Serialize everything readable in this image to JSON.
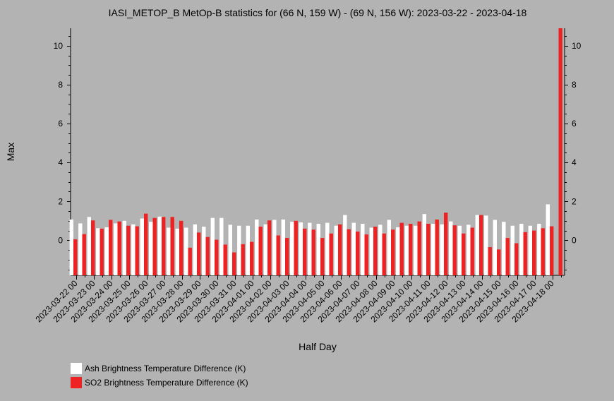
{
  "chart_data": {
    "type": "bar",
    "title": "IASI_METOP_B MetOp-B statistics for (66 N, 159 W) - (69 N, 156 W): 2023-03-22 - 2023-04-18",
    "xlabel": "Half Day",
    "ylabel": "Max",
    "ylim": [
      -1.8,
      10.9
    ],
    "yticks": [
      0,
      2,
      4,
      6,
      8,
      10
    ],
    "grid": false,
    "legend_position": "bottom-left",
    "xtick_labels": [
      "2023-03-22 00",
      "2023-03-23 00",
      "2023-03-24 00",
      "2023-03-25 00",
      "2023-03-26 00",
      "2023-03-27 00",
      "2023-03-28 00",
      "2023-03-29 00",
      "2023-03-30 00",
      "2023-03-31 00",
      "2023-04-01 00",
      "2023-04-02 00",
      "2023-04-03 00",
      "2023-04-04 00",
      "2023-04-05 00",
      "2023-04-06 00",
      "2023-04-07 00",
      "2023-04-08 00",
      "2023-04-09 00",
      "2023-04-10 00",
      "2023-04-11 00",
      "2023-04-12 00",
      "2023-04-13 00",
      "2023-04-14 00",
      "2023-04-15 00",
      "2023-04-16 00",
      "2023-04-17 00",
      "2023-04-18 00"
    ],
    "series": [
      {
        "name": "Ash Brightness Temperature Difference (K)",
        "color": "#ffffff",
        "values": [
          1.07,
          0.87,
          1.2,
          0.62,
          0.67,
          0.87,
          1.0,
          0.82,
          1.12,
          0.95,
          1.22,
          0.65,
          0.6,
          0.65,
          0.82,
          0.7,
          1.15,
          1.15,
          0.8,
          0.75,
          0.75,
          1.07,
          0.82,
          1.05,
          1.07,
          0.95,
          0.92,
          0.9,
          0.85,
          0.9,
          0.75,
          1.3,
          0.9,
          0.85,
          0.65,
          0.8,
          1.05,
          0.67,
          0.75,
          0.75,
          1.35,
          0.85,
          0.82,
          0.97,
          0.75,
          0.8,
          1.3,
          1.27,
          1.05,
          0.95,
          0.75,
          0.85,
          0.75,
          0.85,
          1.85
        ]
      },
      {
        "name": "SO2 Brightness Temperature Difference (K)",
        "color": "#ee2222",
        "values": [
          0.05,
          0.32,
          1.02,
          0.6,
          1.05,
          0.97,
          0.75,
          0.72,
          1.37,
          1.15,
          1.2,
          1.2,
          1.0,
          -0.38,
          0.4,
          0.17,
          0.03,
          -0.22,
          -0.62,
          -0.2,
          -0.08,
          0.7,
          1.02,
          0.25,
          0.12,
          1.0,
          0.6,
          0.55,
          0.12,
          0.35,
          0.82,
          0.57,
          0.45,
          0.3,
          0.7,
          0.35,
          0.55,
          0.9,
          0.85,
          0.97,
          0.85,
          1.07,
          1.42,
          0.77,
          0.35,
          0.65,
          1.3,
          -0.35,
          -0.47,
          0.12,
          -0.15,
          0.42,
          0.5,
          0.62,
          0.72,
          10.9
        ]
      }
    ]
  }
}
